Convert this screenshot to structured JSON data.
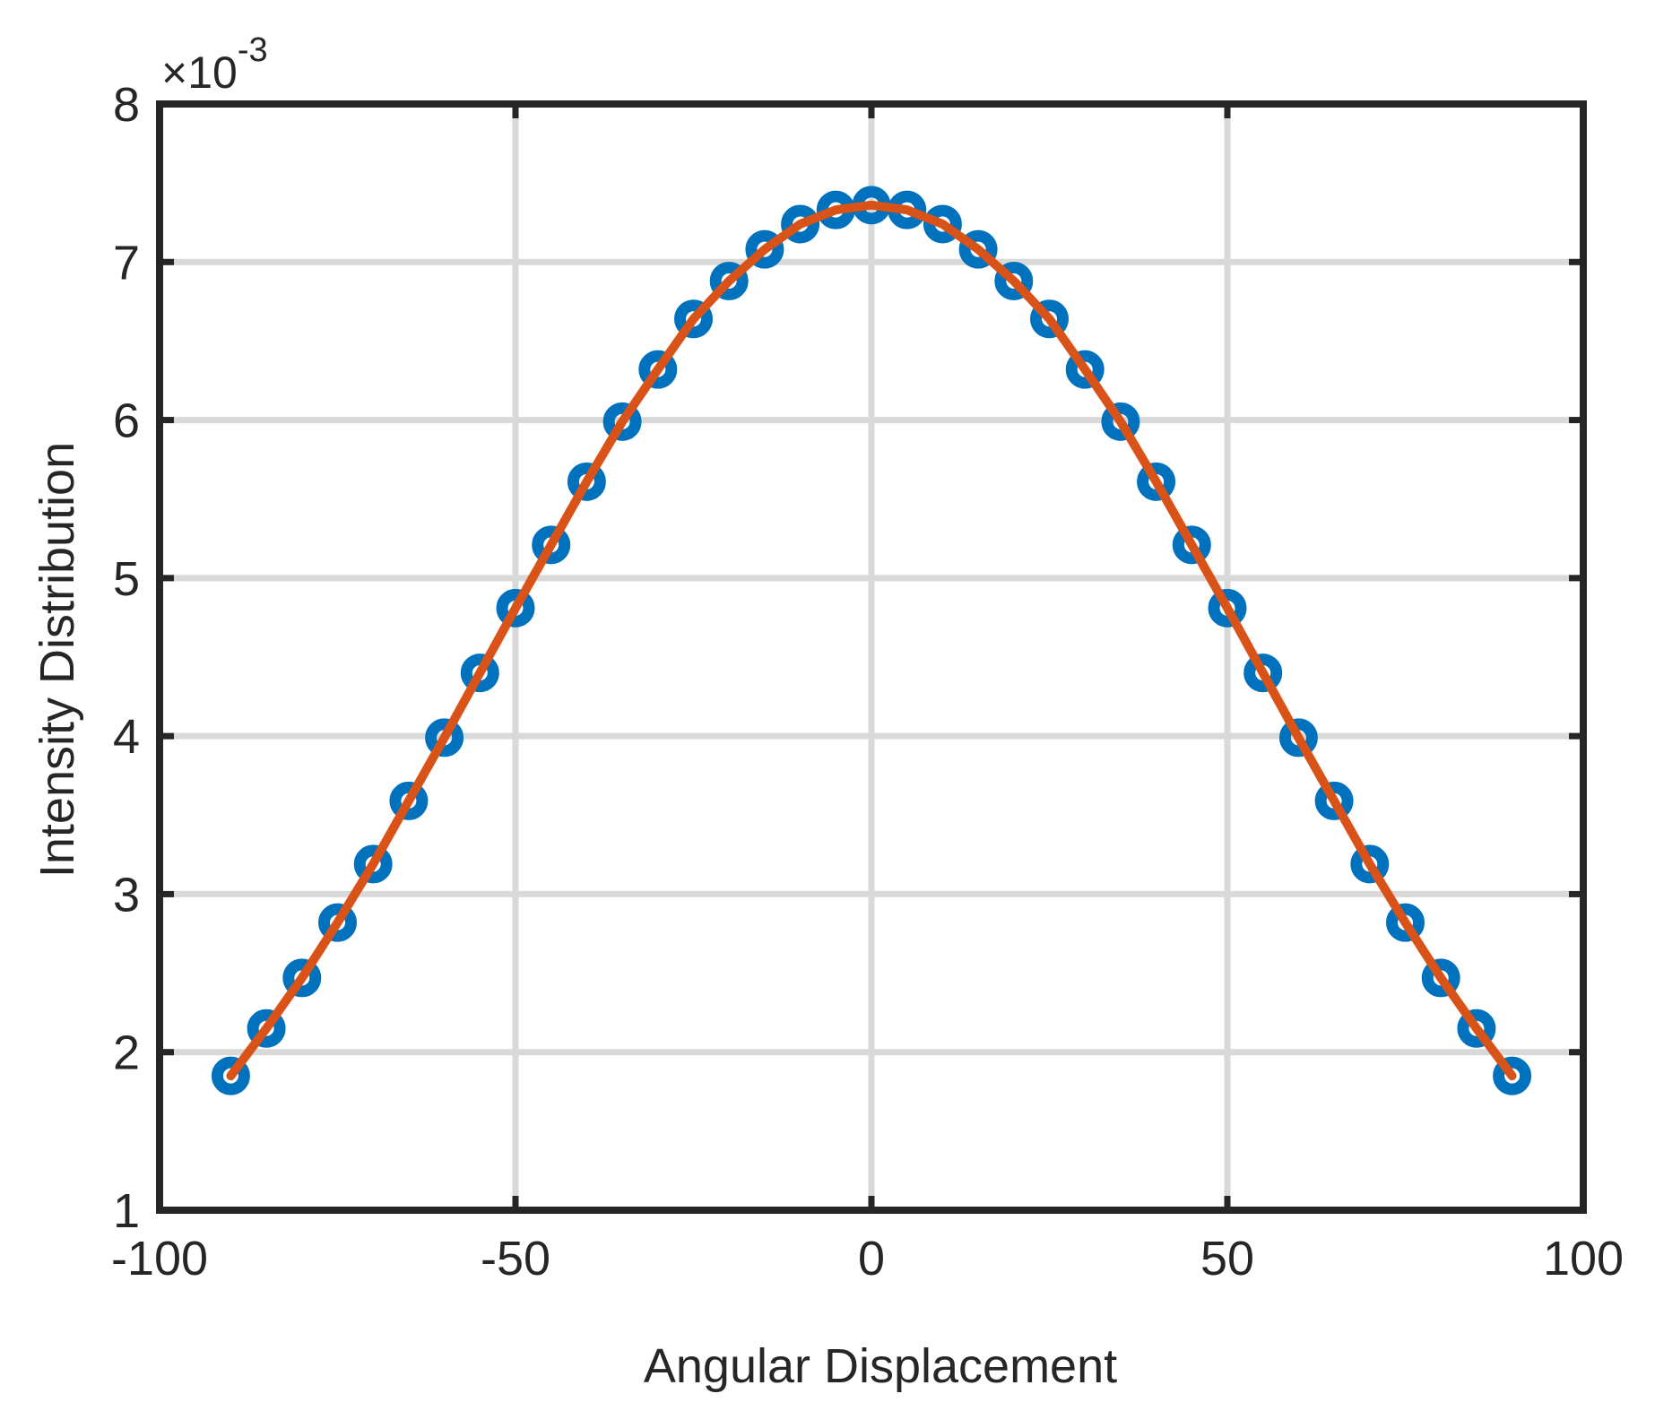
{
  "chart_data": {
    "type": "scatter",
    "xlabel": "Angular Displacement",
    "ylabel": "Intensity Distribution",
    "xlim": [
      -100,
      100
    ],
    "ylim": [
      1,
      8
    ],
    "xticks": [
      -100,
      -50,
      0,
      50,
      100
    ],
    "yticks": [
      1,
      2,
      3,
      4,
      5,
      6,
      7,
      8
    ],
    "xtick_labels": [
      "-100",
      "-50",
      "0",
      "50",
      "100"
    ],
    "ytick_labels": [
      "1",
      "2",
      "3",
      "4",
      "5",
      "6",
      "7",
      "8"
    ],
    "y_exponent": {
      "base": "×10",
      "power": "-3"
    },
    "grid": true,
    "colors": {
      "markers": "#0072BD",
      "line": "#D95319",
      "grid": "#d9d9d9",
      "axes": "#262626"
    },
    "series": [
      {
        "kind": "markers",
        "x": [
          -90,
          -85,
          -80,
          -75,
          -70,
          -65,
          -60,
          -55,
          -50,
          -45,
          -40,
          -35,
          -30,
          -25,
          -20,
          -15,
          -10,
          -5,
          0,
          5,
          10,
          15,
          20,
          25,
          30,
          35,
          40,
          45,
          50,
          55,
          60,
          65,
          70,
          75,
          80,
          85,
          90
        ],
        "y": [
          1.85,
          2.15,
          2.47,
          2.82,
          3.19,
          3.59,
          3.99,
          4.4,
          4.81,
          5.21,
          5.61,
          5.99,
          6.32,
          6.64,
          6.88,
          7.08,
          7.24,
          7.33,
          7.36,
          7.33,
          7.24,
          7.08,
          6.88,
          6.64,
          6.32,
          5.99,
          5.61,
          5.21,
          4.81,
          4.4,
          3.99,
          3.59,
          3.19,
          2.82,
          2.47,
          2.15,
          1.85
        ]
      },
      {
        "kind": "line",
        "x": [
          -90,
          -85,
          -80,
          -75,
          -70,
          -65,
          -60,
          -55,
          -50,
          -45,
          -40,
          -35,
          -30,
          -25,
          -20,
          -15,
          -10,
          -5,
          0,
          5,
          10,
          15,
          20,
          25,
          30,
          35,
          40,
          45,
          50,
          55,
          60,
          65,
          70,
          75,
          80,
          85,
          90
        ],
        "y": [
          1.85,
          2.15,
          2.47,
          2.82,
          3.19,
          3.59,
          3.99,
          4.4,
          4.81,
          5.21,
          5.61,
          5.99,
          6.32,
          6.64,
          6.88,
          7.08,
          7.24,
          7.33,
          7.36,
          7.33,
          7.24,
          7.08,
          6.88,
          6.64,
          6.32,
          5.99,
          5.61,
          5.21,
          4.81,
          4.4,
          3.99,
          3.59,
          3.19,
          2.82,
          2.47,
          2.15,
          1.85
        ]
      }
    ]
  }
}
